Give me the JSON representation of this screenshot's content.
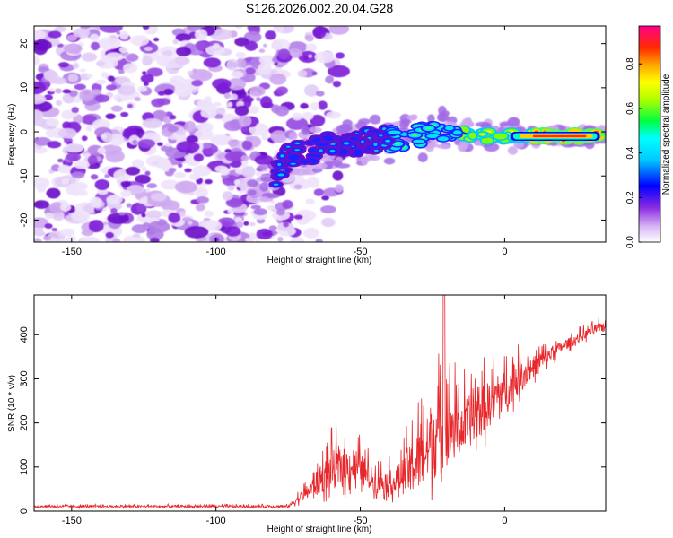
{
  "title": "S126.2026.002.20.04.G28",
  "chart_data": [
    {
      "type": "heatmap",
      "xlabel": "Height of straight line (km)",
      "ylabel": "Frequency (Hz)",
      "xlim": [
        -163,
        35
      ],
      "ylim": [
        -25,
        24
      ],
      "xticks": [
        -150,
        -100,
        -50,
        0
      ],
      "yticks": [
        -20,
        -10,
        0,
        10,
        20
      ],
      "colorbar": {
        "label": "Normalized spectral amplitude",
        "range": [
          0,
          0.97
        ],
        "ticks": [
          0,
          0.2,
          0.4,
          0.6,
          0.8
        ],
        "tick_labels": [
          "0.0",
          "0.2",
          "0.4",
          "0.6",
          "0.8"
        ]
      },
      "ridge": {
        "description_points": [
          {
            "x": -85,
            "y": -15
          },
          {
            "x": -75,
            "y": -5.5
          },
          {
            "x": -60,
            "y": -3
          },
          {
            "x": -45,
            "y": -2
          },
          {
            "x": -30,
            "y": -1
          },
          {
            "x": -20,
            "y": 0
          },
          {
            "x": -10,
            "y": -1
          },
          {
            "x": 0,
            "y": -1
          },
          {
            "x": 15,
            "y": -1
          },
          {
            "x": 33,
            "y": -1
          }
        ]
      },
      "noise_region_x": [
        -163,
        -75
      ]
    },
    {
      "type": "line",
      "xlabel": "Height of straight line (km)",
      "ylabel": "SNR (10 * v/v)",
      "xlim": [
        -163,
        35
      ],
      "ylim": [
        0,
        490
      ],
      "xticks": [
        -150,
        -100,
        -50,
        0
      ],
      "yticks": [
        0,
        100,
        200,
        300,
        400
      ],
      "color": "#e8272b",
      "envelope": [
        {
          "x": -163,
          "base": 10,
          "spread": 6
        },
        {
          "x": -75,
          "base": 10,
          "spread": 6
        },
        {
          "x": -68,
          "base": 40,
          "spread": 40
        },
        {
          "x": -60,
          "base": 80,
          "spread": 110
        },
        {
          "x": -52,
          "base": 90,
          "spread": 110
        },
        {
          "x": -45,
          "base": 60,
          "spread": 60
        },
        {
          "x": -38,
          "base": 55,
          "spread": 70
        },
        {
          "x": -30,
          "base": 90,
          "spread": 170
        },
        {
          "x": -22,
          "base": 150,
          "spread": 230
        },
        {
          "x": -15,
          "base": 170,
          "spread": 150
        },
        {
          "x": -8,
          "base": 210,
          "spread": 140
        },
        {
          "x": 0,
          "base": 260,
          "spread": 110
        },
        {
          "x": 10,
          "base": 320,
          "spread": 60
        },
        {
          "x": 20,
          "base": 370,
          "spread": 30
        },
        {
          "x": 35,
          "base": 420,
          "spread": 25
        }
      ]
    }
  ]
}
